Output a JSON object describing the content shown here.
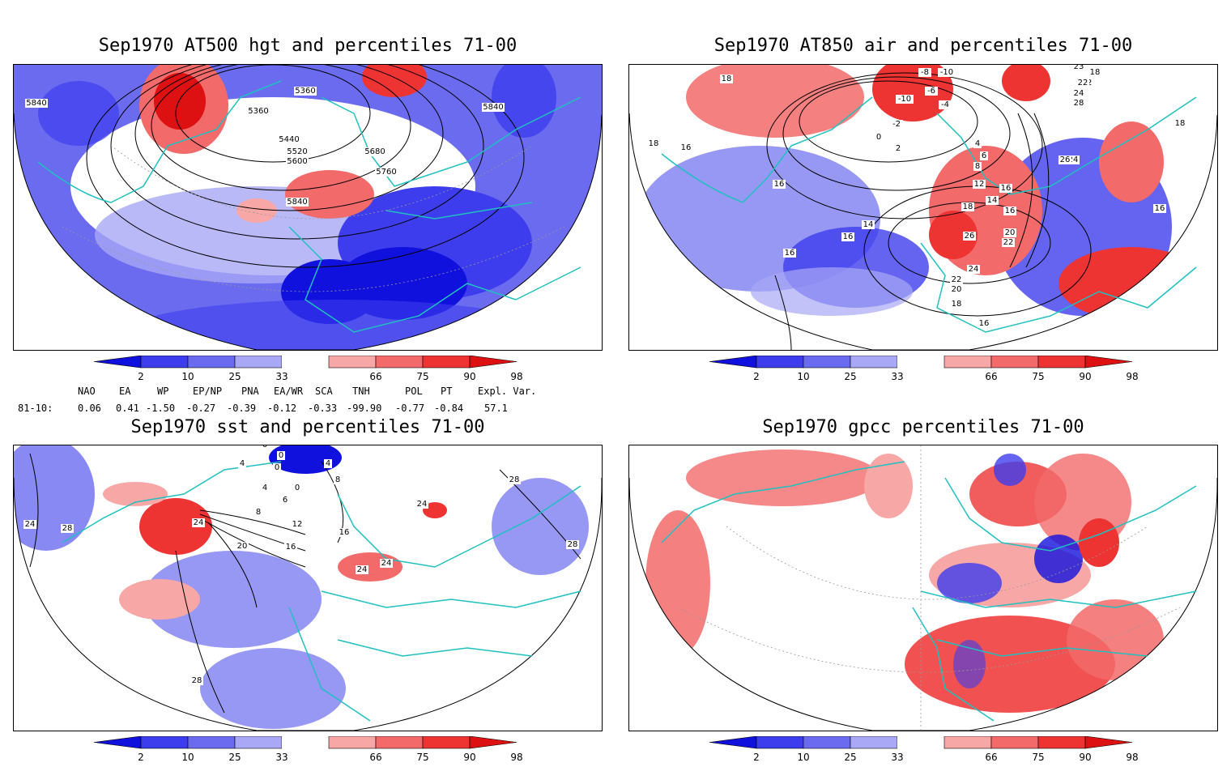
{
  "panels": [
    {
      "id": "p1",
      "title": "Sep1970 AT500 hgt and percentiles 71-00",
      "contour_labels": [
        "5840",
        "5360",
        "5360",
        "5440",
        "5520",
        "5600",
        "5680",
        "5760",
        "5840",
        "5840"
      ]
    },
    {
      "id": "p2",
      "title": "Sep1970 AT850 air and percentiles 71-00",
      "contour_labels": [
        "18",
        "18",
        "16",
        "16",
        "16",
        "-8",
        "-10",
        "-6",
        "-4",
        "-10",
        "-2",
        "0",
        "2",
        "4",
        "6",
        "8",
        "12",
        "14",
        "16",
        "18",
        "20",
        "22",
        "24",
        "26",
        "24",
        "22",
        "20",
        "18",
        "16",
        "14",
        "16",
        "18",
        "22",
        "24",
        "28",
        "26",
        "18",
        "16",
        "16",
        "23",
        "22"
      ]
    },
    {
      "id": "p3",
      "title": "Sep1970 sst and percentiles 71-00",
      "contour_labels": [
        "0",
        "0",
        "0",
        "4",
        "4",
        "6",
        "8",
        "4",
        "0",
        "8",
        "12",
        "16",
        "16",
        "20",
        "24",
        "24",
        "24",
        "28",
        "28",
        "28",
        "24",
        "28",
        "24"
      ]
    },
    {
      "id": "p4",
      "title": "Sep1970 gpcc percentiles 71-00",
      "contour_labels": []
    }
  ],
  "colorbar": {
    "labels": [
      "2",
      "10",
      "25",
      "33",
      "66",
      "75",
      "90",
      "98"
    ],
    "colors": {
      "c2": "#1111dd",
      "c10": "#3d3dee",
      "c25": "#6b6bf0",
      "c33": "#a8a8f6",
      "c66": "#f8a7a7",
      "c75": "#f26a6a",
      "c90": "#ee3333",
      "c98": "#dd1111"
    }
  },
  "indices": {
    "headers": [
      "NAO",
      "EA",
      "WP",
      "EP/NP",
      "PNA",
      "EA/WR",
      "SCA",
      "TNH",
      "POL",
      "PT",
      "Expl. Var."
    ],
    "row_label": "81-10:",
    "values": [
      "0.06",
      "0.41",
      "-1.50",
      "-0.27",
      "-0.39",
      "-0.12",
      "-0.33",
      "-99.90",
      "-0.77",
      "-0.84",
      "57.1"
    ]
  },
  "map_colors": {
    "coast": "#20c0c0",
    "blue_dark": "#1111dd",
    "blue": "#3d3dee",
    "blue_mid": "#6b6bf0",
    "blue_light": "#a8a8f6",
    "red_light": "#f8a7a7",
    "red": "#f26a6a",
    "red_dark": "#ee3333"
  }
}
